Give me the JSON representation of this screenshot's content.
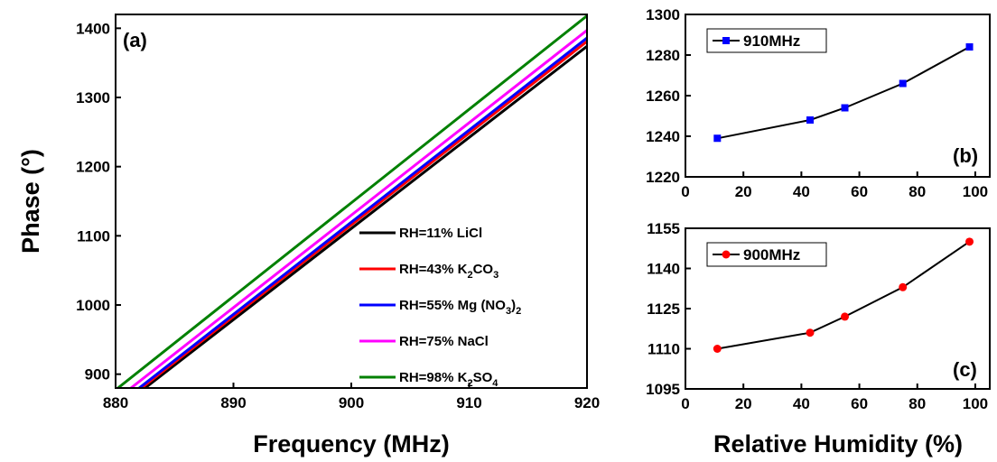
{
  "chart_data": [
    {
      "panel": "(a)",
      "type": "line",
      "xlabel": "Frequency (MHz)",
      "ylabel": "Phase (°)",
      "xlim": [
        880,
        920
      ],
      "ylim": [
        880,
        1420
      ],
      "xticks": [
        880,
        890,
        900,
        910,
        920
      ],
      "yticks": [
        900,
        1000,
        1100,
        1200,
        1300,
        1400
      ],
      "legend_position": "center-right",
      "series": [
        {
          "name": "RH=11% LiCl",
          "color": "#000000",
          "x": [
            882.5,
            920
          ],
          "y": [
            880,
            1374
          ]
        },
        {
          "name": "RH=43% K2CO3",
          "color": "#ff0000",
          "x": [
            882.2,
            920
          ],
          "y": [
            880,
            1381
          ]
        },
        {
          "name": "RH=55% Mg (NO3)2",
          "color": "#0000ff",
          "x": [
            882.0,
            920
          ],
          "y": [
            880,
            1386
          ]
        },
        {
          "name": "RH=75% NaCl",
          "color": "#ff00ff",
          "x": [
            881.3,
            920
          ],
          "y": [
            880,
            1397
          ]
        },
        {
          "name": "RH=98% K2SO4",
          "color": "#008000",
          "x": [
            880.2,
            920
          ],
          "y": [
            880,
            1418
          ]
        }
      ]
    },
    {
      "panel": "(b)",
      "type": "line",
      "xlabel": "",
      "ylabel": "",
      "xlim": [
        0,
        105
      ],
      "ylim": [
        1220,
        1300
      ],
      "xticks": [
        0,
        20,
        40,
        60,
        80,
        100
      ],
      "yticks": [
        1220,
        1240,
        1260,
        1280,
        1300
      ],
      "legend_position": "top-left",
      "series": [
        {
          "name": "910MHz",
          "color": "#0000ff",
          "marker": "square",
          "x": [
            11,
            43,
            55,
            75,
            98
          ],
          "y": [
            1239,
            1248,
            1254,
            1266,
            1284
          ]
        }
      ]
    },
    {
      "panel": "(c)",
      "type": "line",
      "xlabel": "Relative Humidity (%)",
      "ylabel": "",
      "xlim": [
        0,
        105
      ],
      "ylim": [
        1095,
        1155
      ],
      "xticks": [
        0,
        20,
        40,
        60,
        80,
        100
      ],
      "yticks": [
        1095,
        1110,
        1125,
        1140,
        1155
      ],
      "legend_position": "top-left",
      "series": [
        {
          "name": "900MHz",
          "color": "#ff0000",
          "marker": "circle",
          "x": [
            11,
            43,
            55,
            75,
            98
          ],
          "y": [
            1110,
            1116,
            1122,
            1133,
            1150
          ]
        }
      ]
    }
  ]
}
